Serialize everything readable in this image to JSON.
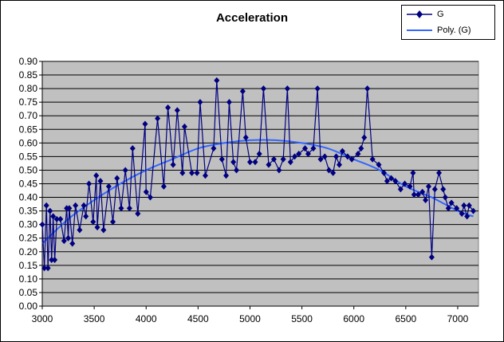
{
  "chart_data": {
    "type": "line",
    "title": "Acceleration",
    "xlabel": "",
    "ylabel": "",
    "xlim": [
      3000,
      7200
    ],
    "ylim": [
      0,
      0.9
    ],
    "xticks": [
      3000,
      3500,
      4000,
      4500,
      5000,
      5500,
      6000,
      6500,
      7000
    ],
    "yticks": [
      "0.00",
      "0.05",
      "0.10",
      "0.15",
      "0.20",
      "0.25",
      "0.30",
      "0.35",
      "0.40",
      "0.45",
      "0.50",
      "0.55",
      "0.60",
      "0.65",
      "0.70",
      "0.75",
      "0.80",
      "0.85",
      "0.90"
    ],
    "grid": "horizontal",
    "legend_position": "top-right",
    "colors": {
      "series": "#000080",
      "trend": "#3366ff",
      "plot_bg": "#c0c0c0"
    },
    "series": [
      {
        "name": "G",
        "marker": "diamond",
        "points": [
          [
            3000,
            0.3
          ],
          [
            3020,
            0.14
          ],
          [
            3040,
            0.37
          ],
          [
            3055,
            0.14
          ],
          [
            3075,
            0.35
          ],
          [
            3090,
            0.17
          ],
          [
            3105,
            0.33
          ],
          [
            3120,
            0.17
          ],
          [
            3140,
            0.32
          ],
          [
            3175,
            0.32
          ],
          [
            3210,
            0.24
          ],
          [
            3235,
            0.36
          ],
          [
            3250,
            0.25
          ],
          [
            3260,
            0.36
          ],
          [
            3290,
            0.23
          ],
          [
            3320,
            0.37
          ],
          [
            3360,
            0.28
          ],
          [
            3400,
            0.37
          ],
          [
            3420,
            0.33
          ],
          [
            3450,
            0.45
          ],
          [
            3490,
            0.31
          ],
          [
            3520,
            0.48
          ],
          [
            3530,
            0.29
          ],
          [
            3560,
            0.46
          ],
          [
            3590,
            0.28
          ],
          [
            3640,
            0.44
          ],
          [
            3680,
            0.31
          ],
          [
            3720,
            0.47
          ],
          [
            3760,
            0.36
          ],
          [
            3800,
            0.5
          ],
          [
            3840,
            0.36
          ],
          [
            3870,
            0.58
          ],
          [
            3920,
            0.34
          ],
          [
            3990,
            0.67
          ],
          [
            4000,
            0.42
          ],
          [
            4040,
            0.4
          ],
          [
            4110,
            0.69
          ],
          [
            4170,
            0.44
          ],
          [
            4210,
            0.73
          ],
          [
            4260,
            0.52
          ],
          [
            4300,
            0.72
          ],
          [
            4350,
            0.49
          ],
          [
            4370,
            0.66
          ],
          [
            4440,
            0.49
          ],
          [
            4490,
            0.49
          ],
          [
            4520,
            0.75
          ],
          [
            4570,
            0.48
          ],
          [
            4650,
            0.58
          ],
          [
            4680,
            0.83
          ],
          [
            4730,
            0.54
          ],
          [
            4770,
            0.48
          ],
          [
            4800,
            0.75
          ],
          [
            4840,
            0.53
          ],
          [
            4870,
            0.5
          ],
          [
            4930,
            0.79
          ],
          [
            4960,
            0.62
          ],
          [
            5000,
            0.53
          ],
          [
            5050,
            0.53
          ],
          [
            5090,
            0.56
          ],
          [
            5130,
            0.8
          ],
          [
            5180,
            0.52
          ],
          [
            5230,
            0.54
          ],
          [
            5280,
            0.5
          ],
          [
            5320,
            0.54
          ],
          [
            5360,
            0.8
          ],
          [
            5390,
            0.53
          ],
          [
            5430,
            0.55
          ],
          [
            5470,
            0.56
          ],
          [
            5530,
            0.58
          ],
          [
            5560,
            0.56
          ],
          [
            5610,
            0.58
          ],
          [
            5650,
            0.8
          ],
          [
            5680,
            0.54
          ],
          [
            5720,
            0.55
          ],
          [
            5760,
            0.5
          ],
          [
            5800,
            0.49
          ],
          [
            5830,
            0.55
          ],
          [
            5860,
            0.52
          ],
          [
            5890,
            0.57
          ],
          [
            5940,
            0.55
          ],
          [
            5980,
            0.54
          ],
          [
            6040,
            0.56
          ],
          [
            6070,
            0.58
          ],
          [
            6100,
            0.62
          ],
          [
            6130,
            0.8
          ],
          [
            6180,
            0.54
          ],
          [
            6240,
            0.52
          ],
          [
            6290,
            0.49
          ],
          [
            6320,
            0.46
          ],
          [
            6360,
            0.47
          ],
          [
            6400,
            0.46
          ],
          [
            6450,
            0.43
          ],
          [
            6490,
            0.45
          ],
          [
            6540,
            0.44
          ],
          [
            6570,
            0.49
          ],
          [
            6580,
            0.41
          ],
          [
            6620,
            0.41
          ],
          [
            6660,
            0.42
          ],
          [
            6690,
            0.39
          ],
          [
            6720,
            0.44
          ],
          [
            6750,
            0.18
          ],
          [
            6780,
            0.43
          ],
          [
            6820,
            0.49
          ],
          [
            6860,
            0.43
          ],
          [
            6880,
            0.4
          ],
          [
            6910,
            0.36
          ],
          [
            6940,
            0.38
          ],
          [
            6990,
            0.36
          ],
          [
            7040,
            0.34
          ],
          [
            7060,
            0.37
          ],
          [
            7090,
            0.33
          ],
          [
            7110,
            0.37
          ],
          [
            7150,
            0.35
          ]
        ]
      },
      {
        "name": "Poly. (G)",
        "kind": "polynomial-trendline",
        "points": [
          [
            3000,
            0.23
          ],
          [
            3250,
            0.32
          ],
          [
            3500,
            0.39
          ],
          [
            3750,
            0.45
          ],
          [
            4000,
            0.5
          ],
          [
            4250,
            0.54
          ],
          [
            4500,
            0.58
          ],
          [
            4750,
            0.6
          ],
          [
            5000,
            0.61
          ],
          [
            5250,
            0.61
          ],
          [
            5500,
            0.6
          ],
          [
            5750,
            0.58
          ],
          [
            6000,
            0.54
          ],
          [
            6250,
            0.5
          ],
          [
            6500,
            0.44
          ],
          [
            6750,
            0.4
          ],
          [
            7000,
            0.35
          ],
          [
            7150,
            0.33
          ]
        ]
      }
    ]
  }
}
